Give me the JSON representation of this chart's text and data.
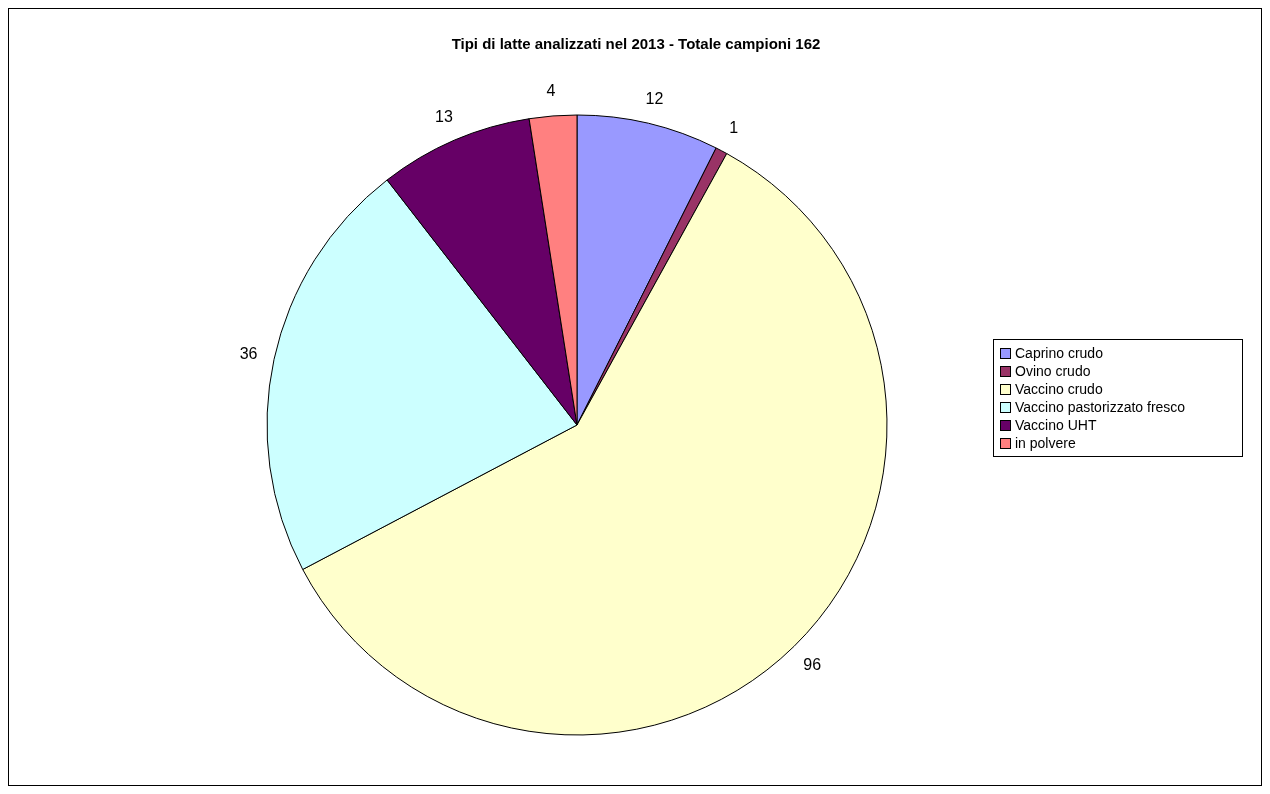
{
  "chart_data": {
    "type": "pie",
    "title": "Tipi di latte analizzati nel 2013 - Totale campioni 162",
    "categories": [
      "Caprino crudo",
      "Ovino crudo",
      "Vaccino crudo",
      "Vaccino pastorizzato fresco",
      "Vaccino UHT",
      "in polvere"
    ],
    "values": [
      12,
      1,
      96,
      36,
      13,
      4
    ],
    "colors": [
      "#9999ff",
      "#993366",
      "#ffffcc",
      "#ccffff",
      "#660066",
      "#ff8080"
    ],
    "data_labels": true,
    "legend": "right"
  }
}
